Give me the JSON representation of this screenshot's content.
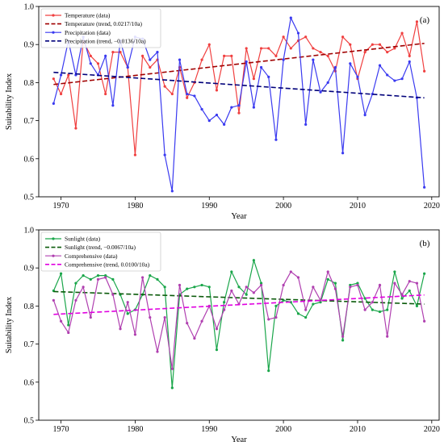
{
  "chart_data": [
    {
      "type": "line",
      "panel_label": "(a)",
      "xlabel": "Year",
      "ylabel": "Suitability Index",
      "xlim": [
        1967,
        2021
      ],
      "ylim": [
        0.5,
        1.0
      ],
      "x_ticks": [
        1970,
        1980,
        1990,
        2000,
        2010,
        2020
      ],
      "y_ticks": [
        0.5,
        0.6,
        0.7,
        0.8,
        0.9,
        1.0
      ],
      "legend_position": "top-left",
      "x": [
        1969,
        1970,
        1971,
        1972,
        1973,
        1974,
        1975,
        1976,
        1977,
        1978,
        1979,
        1980,
        1981,
        1982,
        1983,
        1984,
        1985,
        1986,
        1987,
        1988,
        1989,
        1990,
        1991,
        1992,
        1993,
        1994,
        1995,
        1996,
        1997,
        1998,
        1999,
        2000,
        2001,
        2002,
        2003,
        2004,
        2005,
        2006,
        2007,
        2008,
        2009,
        2010,
        2011,
        2012,
        2013,
        2014,
        2015,
        2016,
        2017,
        2018,
        2019
      ],
      "series": [
        {
          "name": "Temperature (data)",
          "color": "#f04040",
          "style": "solid-markers",
          "values": [
            0.81,
            0.77,
            0.82,
            0.68,
            0.91,
            0.87,
            0.85,
            0.77,
            0.88,
            0.88,
            0.84,
            0.61,
            0.87,
            0.84,
            0.86,
            0.79,
            0.77,
            0.84,
            0.76,
            0.8,
            0.86,
            0.9,
            0.78,
            0.87,
            0.87,
            0.72,
            0.89,
            0.81,
            0.89,
            0.89,
            0.87,
            0.92,
            0.89,
            0.91,
            0.92,
            0.89,
            0.88,
            0.87,
            0.83,
            0.92,
            0.9,
            0.81,
            0.88,
            0.9,
            0.9,
            0.88,
            0.89,
            0.93,
            0.87,
            0.96,
            0.83
          ]
        },
        {
          "name": "Temperature (trend, 0.0217/10a)",
          "color": "#a00000",
          "style": "dashed",
          "trend": [
            [
              1969,
              0.795
            ],
            [
              2019,
              0.903
            ]
          ]
        },
        {
          "name": "Precipitation (data)",
          "color": "#3a3af0",
          "style": "solid-markers",
          "values": [
            0.745,
            0.82,
            0.91,
            0.82,
            0.92,
            0.85,
            0.82,
            0.87,
            0.74,
            0.91,
            0.84,
            0.92,
            0.915,
            0.86,
            0.88,
            0.61,
            0.515,
            0.86,
            0.77,
            0.765,
            0.73,
            0.7,
            0.715,
            0.69,
            0.735,
            0.74,
            0.855,
            0.735,
            0.84,
            0.815,
            0.65,
            0.86,
            0.97,
            0.93,
            0.69,
            0.86,
            0.775,
            0.8,
            0.84,
            0.615,
            0.85,
            0.815,
            0.715,
            0.77,
            0.845,
            0.82,
            0.805,
            0.81,
            0.855,
            0.76,
            0.525
          ]
        },
        {
          "name": "Precipitation (trend, −0.0136/10a)",
          "color": "#00007a",
          "style": "dashed",
          "trend": [
            [
              1969,
              0.827
            ],
            [
              2019,
              0.76
            ]
          ]
        }
      ]
    },
    {
      "type": "line",
      "panel_label": "(b)",
      "xlabel": "Year",
      "ylabel": "Suitability Index",
      "xlim": [
        1967,
        2021
      ],
      "ylim": [
        0.5,
        1.0
      ],
      "x_ticks": [
        1970,
        1980,
        1990,
        2000,
        2010,
        2020
      ],
      "y_ticks": [
        0.5,
        0.6,
        0.7,
        0.8,
        0.9,
        1.0
      ],
      "legend_position": "top-left",
      "x": [
        1969,
        1970,
        1971,
        1972,
        1973,
        1974,
        1975,
        1976,
        1977,
        1978,
        1979,
        1980,
        1981,
        1982,
        1983,
        1984,
        1985,
        1986,
        1987,
        1988,
        1989,
        1990,
        1991,
        1992,
        1993,
        1994,
        1995,
        1996,
        1997,
        1998,
        1999,
        2000,
        2001,
        2002,
        2003,
        2004,
        2005,
        2006,
        2007,
        2008,
        2009,
        2010,
        2011,
        2012,
        2013,
        2014,
        2015,
        2016,
        2017,
        2018,
        2019
      ],
      "series": [
        {
          "name": "Sunlight (data)",
          "color": "#1aa64a",
          "style": "solid-markers",
          "values": [
            0.84,
            0.885,
            0.75,
            0.86,
            0.88,
            0.87,
            0.88,
            0.88,
            0.87,
            0.83,
            0.78,
            0.79,
            0.83,
            0.88,
            0.87,
            0.85,
            0.585,
            0.83,
            0.845,
            0.85,
            0.855,
            0.85,
            0.685,
            0.81,
            0.89,
            0.85,
            0.83,
            0.92,
            0.86,
            0.63,
            0.8,
            0.815,
            0.81,
            0.78,
            0.77,
            0.805,
            0.81,
            0.87,
            0.86,
            0.71,
            0.855,
            0.86,
            0.82,
            0.79,
            0.785,
            0.79,
            0.89,
            0.82,
            0.84,
            0.8,
            0.885
          ]
        },
        {
          "name": "Sunlight (trend, −0.0067/10a)",
          "color": "#0a5a0a",
          "style": "dashed",
          "trend": [
            [
              1969,
              0.838
            ],
            [
              2019,
              0.805
            ]
          ]
        },
        {
          "name": "Comprehensive (data)",
          "color": "#b040b0",
          "style": "solid-markers",
          "values": [
            0.815,
            0.76,
            0.73,
            0.815,
            0.85,
            0.77,
            0.87,
            0.875,
            0.83,
            0.74,
            0.81,
            0.725,
            0.875,
            0.77,
            0.68,
            0.77,
            0.635,
            0.855,
            0.755,
            0.715,
            0.76,
            0.8,
            0.74,
            0.79,
            0.84,
            0.805,
            0.85,
            0.835,
            0.855,
            0.765,
            0.77,
            0.855,
            0.89,
            0.875,
            0.79,
            0.85,
            0.815,
            0.89,
            0.845,
            0.72,
            0.85,
            0.855,
            0.79,
            0.81,
            0.855,
            0.72,
            0.86,
            0.83,
            0.865,
            0.86,
            0.76
          ]
        },
        {
          "name": "Comprehensive (trend, 0.0100/10a)",
          "color": "#e000e0",
          "style": "dashed",
          "trend": [
            [
              1969,
              0.778
            ],
            [
              2019,
              0.829
            ]
          ]
        }
      ]
    }
  ]
}
